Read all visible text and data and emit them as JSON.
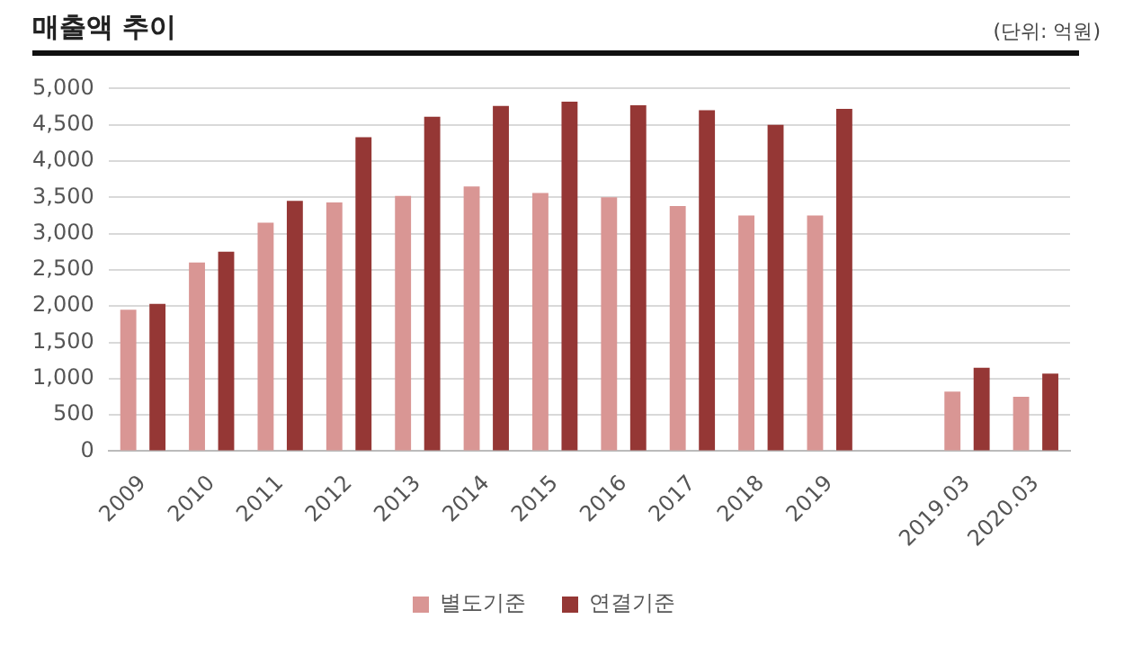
{
  "chart_data": {
    "type": "bar",
    "title": "매출액 추이",
    "annotations": [
      "(단위: 억원)"
    ],
    "categories": [
      "2009",
      "2010",
      "2011",
      "2012",
      "2013",
      "2014",
      "2015",
      "2016",
      "2017",
      "2018",
      "2019",
      null,
      "2019.03",
      "2020.03"
    ],
    "series": [
      {
        "name": "별도기준",
        "color": "#d99694",
        "values": [
          1950,
          2600,
          3150,
          3430,
          3520,
          3650,
          3560,
          3500,
          3380,
          3250,
          3250,
          null,
          820,
          750
        ]
      },
      {
        "name": "연결기준",
        "color": "#953735",
        "values": [
          2030,
          2750,
          3450,
          4330,
          4610,
          4760,
          4820,
          4770,
          4700,
          4500,
          4720,
          null,
          1150,
          1070
        ]
      }
    ],
    "ylim": [
      0,
      5000
    ],
    "yticks": [
      0,
      500,
      {
        "value": 1000,
        "label": "1,000"
      },
      {
        "value": 1500,
        "label": "1,500"
      },
      {
        "value": 2000,
        "label": "2,000"
      },
      {
        "value": 2500,
        "label": "2,500"
      },
      {
        "value": 3000,
        "label": "3,000"
      },
      {
        "value": 3500,
        "label": "3,500"
      },
      {
        "value": 4000,
        "label": "4,000"
      },
      {
        "value": 4500,
        "label": "4,500"
      },
      {
        "value": 5000,
        "label": "5,000"
      }
    ],
    "grid": "y",
    "legend": "bottom"
  }
}
